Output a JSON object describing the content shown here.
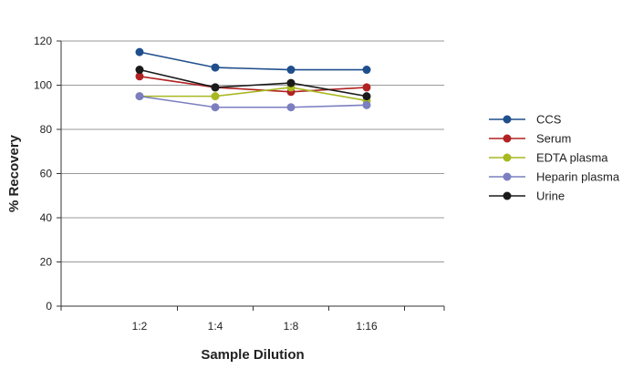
{
  "chart_data": {
    "type": "line",
    "title": "",
    "xlabel": "Sample Dilution",
    "ylabel": "% Recovery",
    "categories": [
      "1:2",
      "1:4",
      "1:8",
      "1:16"
    ],
    "ylim": [
      0,
      120
    ],
    "yticks": [
      0,
      20,
      40,
      60,
      80,
      100,
      120
    ],
    "grid": true,
    "legend_position": "right",
    "series": [
      {
        "name": "CCS",
        "color": "#1f4e8c",
        "values": [
          115,
          108,
          107,
          107
        ]
      },
      {
        "name": "Serum",
        "color": "#b22222",
        "values": [
          104,
          99,
          97,
          99
        ]
      },
      {
        "name": "EDTA plasma",
        "color": "#a8b820",
        "values": [
          95,
          95,
          99,
          93
        ]
      },
      {
        "name": "Heparin plasma",
        "color": "#7b7fc0",
        "values": [
          95,
          90,
          90,
          91
        ]
      },
      {
        "name": "Urine",
        "color": "#1a1a1a",
        "values": [
          107,
          99,
          101,
          95
        ]
      }
    ]
  }
}
